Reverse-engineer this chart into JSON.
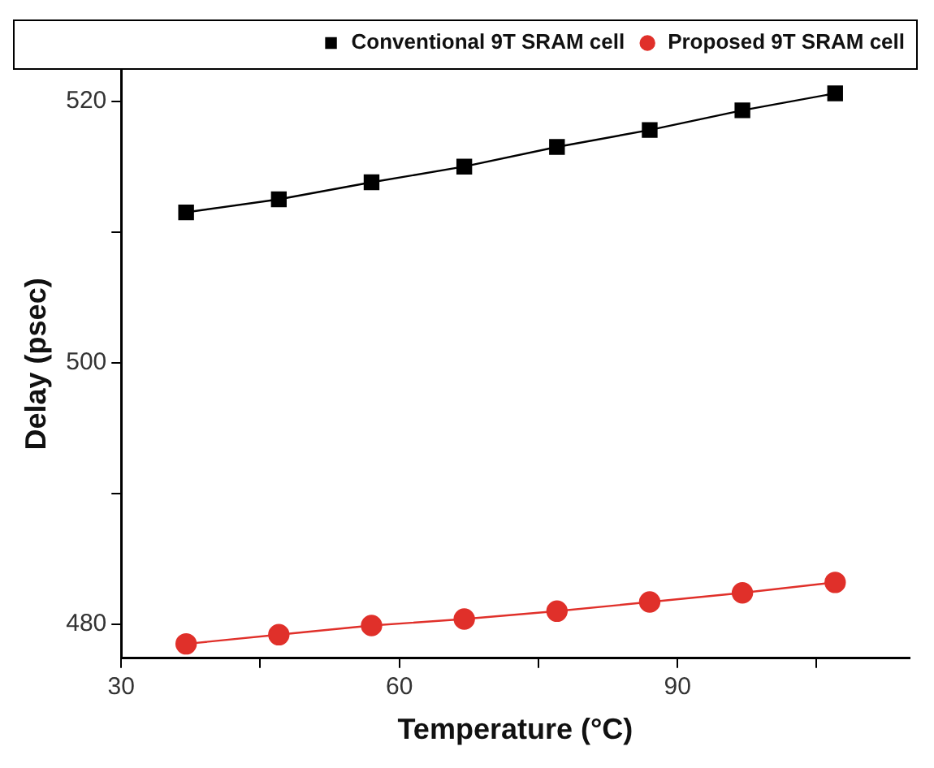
{
  "chart_data": {
    "type": "line",
    "xlabel": "Temperature (°C)",
    "ylabel": "Delay (psec)",
    "x": [
      37,
      47,
      57,
      67,
      77,
      87,
      97,
      107
    ],
    "series": [
      {
        "name": "Conventional 9T SRAM cell",
        "color": "#000000",
        "marker": "square",
        "values": [
          511.5,
          512.5,
          513.8,
          515.0,
          516.5,
          517.8,
          519.3,
          520.6
        ]
      },
      {
        "name": "Proposed 9T SRAM cell",
        "color": "#e0302a",
        "marker": "circle",
        "values": [
          478.5,
          479.2,
          479.9,
          480.4,
          481.0,
          481.7,
          482.4,
          483.2
        ]
      }
    ],
    "xlim": [
      30,
      115
    ],
    "xticks": [
      30,
      {
        "value": 45,
        "label": null
      },
      60,
      {
        "value": 75,
        "label": null
      },
      90,
      {
        "value": 105,
        "label": null
      }
    ],
    "ylim": [
      477.4,
      522.4
    ],
    "yticks": [
      480,
      {
        "value": 490,
        "label": null
      },
      500,
      {
        "value": 510,
        "label": null
      },
      520
    ],
    "grid": false,
    "legend": "top right",
    "line_style": "solid"
  }
}
